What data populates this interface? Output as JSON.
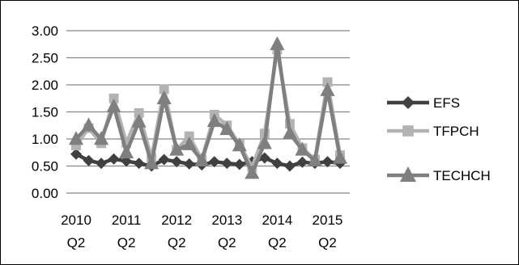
{
  "chart_data": {
    "type": "line",
    "title": "",
    "xlabel": "",
    "ylabel": "",
    "ylim": [
      0,
      3.0
    ],
    "yticks": [
      "0.00",
      "0.50",
      "1.00",
      "1.50",
      "2.00",
      "2.50",
      "3.00"
    ],
    "grid": "horizontal",
    "legend_position": "right",
    "x_tick_labels": [
      {
        "index": 0,
        "year": "2010",
        "quarter": "Q2"
      },
      {
        "index": 4,
        "year": "2011",
        "quarter": "Q2"
      },
      {
        "index": 8,
        "year": "2012",
        "quarter": "Q2"
      },
      {
        "index": 12,
        "year": "2013",
        "quarter": "Q2"
      },
      {
        "index": 16,
        "year": "2014",
        "quarter": "Q2"
      },
      {
        "index": 20,
        "year": "2015",
        "quarter": "Q2"
      }
    ],
    "series": [
      {
        "name": "EFS",
        "marker": "diamond",
        "color": "#404040",
        "values": [
          0.72,
          0.6,
          0.55,
          0.63,
          0.59,
          0.55,
          0.5,
          0.62,
          0.58,
          0.54,
          0.52,
          0.58,
          0.55,
          0.53,
          0.58,
          0.65,
          0.55,
          0.5,
          0.57,
          0.55,
          0.58,
          0.55
        ]
      },
      {
        "name": "TFPCH",
        "marker": "square",
        "color": "#b3b3b3",
        "values": [
          0.88,
          1.2,
          0.92,
          1.75,
          0.93,
          1.48,
          0.65,
          1.92,
          0.8,
          1.05,
          0.62,
          1.45,
          1.25,
          0.9,
          0.48,
          1.1,
          2.65,
          1.28,
          0.83,
          0.62,
          2.05,
          0.7
        ]
      },
      {
        "name": "TECHCH",
        "marker": "triangle",
        "color": "#7f7f7f",
        "values": [
          1.0,
          1.25,
          1.0,
          1.6,
          0.75,
          1.32,
          0.55,
          1.75,
          0.8,
          0.9,
          0.6,
          1.33,
          1.18,
          0.88,
          0.37,
          0.92,
          2.75,
          1.1,
          0.8,
          0.6,
          1.9,
          0.65
        ]
      }
    ]
  }
}
